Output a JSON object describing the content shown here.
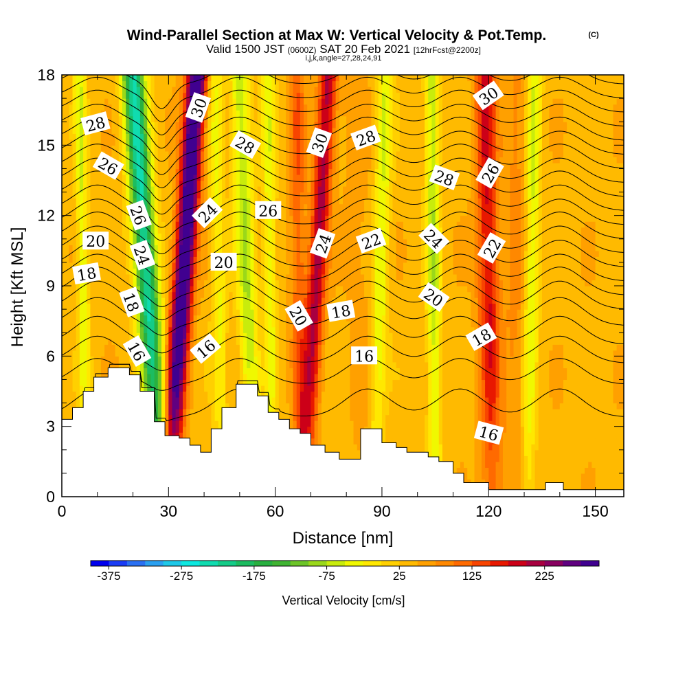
{
  "chart_data": {
    "type": "heatmap",
    "title": "Wind-Parallel Section at Max W: Vertical Velocity & Pot.Temp.",
    "title_mark": "(C)",
    "subtitle_parts": [
      "Valid 1500 JST",
      "(0600Z)",
      "SAT 20 Feb 2021",
      "[12hrFcst@2200z]"
    ],
    "subtitle2": "i,j,k,angle=27,28,24,91",
    "xlabel": "Distance [nm]",
    "ylabel": "Height [Kft MSL]",
    "xlim": [
      0,
      158
    ],
    "ylim": [
      0,
      18
    ],
    "xticks": [
      "0",
      "30",
      "60",
      "90",
      "120",
      "150"
    ],
    "xtick_values": [
      0,
      30,
      60,
      90,
      120,
      150
    ],
    "yticks": [
      "0",
      "3",
      "6",
      "9",
      "12",
      "15",
      "18"
    ],
    "ytick_values": [
      0,
      3,
      6,
      9,
      12,
      15,
      18
    ],
    "colorbar": {
      "title": "Vertical Velocity [cm/s]",
      "labels": [
        "-375",
        "-275",
        "-175",
        "-75",
        "25",
        "125",
        "225"
      ],
      "label_values": [
        -375,
        -275,
        -175,
        -75,
        25,
        125,
        225
      ],
      "min": -400,
      "max": 300,
      "step": 25,
      "colors": [
        "#0000ee",
        "#1a3cf5",
        "#2a70f2",
        "#2aa0f0",
        "#1ec8e8",
        "#0de8e0",
        "#10dcb0",
        "#14cc88",
        "#1cbc60",
        "#28b040",
        "#40b432",
        "#6cc428",
        "#9ad81a",
        "#c8ec0c",
        "#f0f800",
        "#ffe800",
        "#ffd000",
        "#ffba00",
        "#ffa000",
        "#ff8800",
        "#ff6a00",
        "#f84400",
        "#e81800",
        "#cc0018",
        "#a80040",
        "#880060",
        "#600080",
        "#400090"
      ]
    },
    "updrafts": [
      {
        "x_top": 38,
        "x_bottom": 30,
        "amp": 300,
        "width": 2.8
      },
      {
        "x_top": 75,
        "x_bottom": 68,
        "amp": 170,
        "width": 2.6
      },
      {
        "x_top": 119,
        "x_bottom": 121,
        "amp": 140,
        "width": 3.0
      },
      {
        "x_top": 66,
        "x_bottom": 67,
        "amp": 80,
        "width": 2.2
      },
      {
        "x_top": 128,
        "x_bottom": 127,
        "amp": 45,
        "width": 3.0
      },
      {
        "x_top": 82,
        "x_bottom": 85,
        "amp": 25,
        "width": 3.5
      }
    ],
    "downdrafts": [
      {
        "x_top": 20,
        "x_bottom": 28,
        "amp": -270,
        "width": 3.2
      },
      {
        "x_top": 50,
        "x_bottom": 54,
        "amp": -115,
        "width": 2.6
      },
      {
        "x_top": 91,
        "x_bottom": 88,
        "amp": -90,
        "width": 2.2
      },
      {
        "x_top": 104,
        "x_bottom": 105,
        "amp": -110,
        "width": 2.0
      },
      {
        "x_top": 133,
        "x_bottom": 131,
        "amp": -95,
        "width": 2.0
      },
      {
        "x_top": 5,
        "x_bottom": 7,
        "amp": -90,
        "width": 1.6
      },
      {
        "x_top": 43,
        "x_bottom": 45,
        "amp": -70,
        "width": 2.0
      },
      {
        "x_top": 58,
        "x_bottom": 59,
        "amp": -80,
        "width": 1.8
      }
    ],
    "terrain": [
      [
        0,
        3.3
      ],
      [
        3,
        3.3
      ],
      [
        3,
        3.8
      ],
      [
        6,
        3.8
      ],
      [
        6,
        4.5
      ],
      [
        9,
        4.5
      ],
      [
        9,
        5.1
      ],
      [
        13,
        5.1
      ],
      [
        13,
        5.5
      ],
      [
        19,
        5.5
      ],
      [
        19,
        5.2
      ],
      [
        22,
        5.2
      ],
      [
        22,
        4.5
      ],
      [
        26,
        4.5
      ],
      [
        26,
        3.2
      ],
      [
        29,
        3.2
      ],
      [
        29,
        2.6
      ],
      [
        33,
        2.6
      ],
      [
        33,
        2.5
      ],
      [
        36,
        2.5
      ],
      [
        36,
        2.2
      ],
      [
        39,
        2.2
      ],
      [
        39,
        1.9
      ],
      [
        42,
        1.9
      ],
      [
        42,
        2.9
      ],
      [
        45,
        2.9
      ],
      [
        45,
        3.8
      ],
      [
        49,
        3.8
      ],
      [
        49,
        4.8
      ],
      [
        55,
        4.8
      ],
      [
        55,
        4.3
      ],
      [
        58,
        4.3
      ],
      [
        58,
        3.6
      ],
      [
        61,
        3.6
      ],
      [
        61,
        3.3
      ],
      [
        64,
        3.3
      ],
      [
        64,
        2.9
      ],
      [
        67,
        2.9
      ],
      [
        67,
        2.7
      ],
      [
        70,
        2.7
      ],
      [
        70,
        2.2
      ],
      [
        74,
        2.2
      ],
      [
        74,
        1.9
      ],
      [
        78,
        1.9
      ],
      [
        78,
        1.6
      ],
      [
        80,
        1.6
      ],
      [
        80,
        1.6
      ],
      [
        84,
        1.6
      ],
      [
        84,
        2.9
      ],
      [
        90,
        2.9
      ],
      [
        90,
        2.3
      ],
      [
        94,
        2.3
      ],
      [
        94,
        2.1
      ],
      [
        97,
        2.1
      ],
      [
        97,
        1.9
      ],
      [
        103,
        1.9
      ],
      [
        103,
        1.7
      ],
      [
        106,
        1.7
      ],
      [
        106,
        1.5
      ],
      [
        110,
        1.5
      ],
      [
        110,
        1.0
      ],
      [
        113,
        1.0
      ],
      [
        113,
        0.6
      ],
      [
        120,
        0.6
      ],
      [
        120,
        0.3
      ],
      [
        136,
        0.3
      ],
      [
        136,
        0.6
      ],
      [
        141,
        0.6
      ],
      [
        141,
        0.3
      ],
      [
        158,
        0.3
      ]
    ],
    "isentropes": [
      {
        "base": 3.4,
        "A": 1.2
      },
      {
        "base": 4.8,
        "A": 1.1
      },
      {
        "base": 5.7,
        "A": 1.15
      },
      {
        "base": 6.5,
        "A": 1.2
      },
      {
        "base": 7.3,
        "A": 1.2
      },
      {
        "base": 8.0,
        "A": 1.2
      },
      {
        "base": 8.6,
        "A": 1.2
      },
      {
        "base": 9.2,
        "A": 1.15
      },
      {
        "base": 9.8,
        "A": 1.15
      },
      {
        "base": 10.4,
        "A": 1.15
      },
      {
        "base": 11.0,
        "A": 1.15
      },
      {
        "base": 11.6,
        "A": 1.1
      },
      {
        "base": 12.2,
        "A": 1.1
      },
      {
        "base": 12.8,
        "A": 1.1
      },
      {
        "base": 13.4,
        "A": 1.05
      },
      {
        "base": 14.0,
        "A": 1.05
      },
      {
        "base": 14.6,
        "A": 1.0
      },
      {
        "base": 15.2,
        "A": 1.0
      },
      {
        "base": 15.8,
        "A": 0.95
      },
      {
        "base": 16.4,
        "A": 0.95
      },
      {
        "base": 17.0,
        "A": 0.9
      },
      {
        "base": 17.6,
        "A": 0.9
      }
    ],
    "contour_labels": [
      {
        "text": "28",
        "x": 9.5,
        "y": 15.9,
        "angle": -15
      },
      {
        "text": "26",
        "x": 13,
        "y": 14.1,
        "angle": 30
      },
      {
        "text": "20",
        "x": 9.5,
        "y": 10.9,
        "angle": 0
      },
      {
        "text": "18",
        "x": 7,
        "y": 9.5,
        "angle": -10
      },
      {
        "text": "26",
        "x": 21.5,
        "y": 12.0,
        "angle": 70
      },
      {
        "text": "24",
        "x": 22.5,
        "y": 10.3,
        "angle": 70
      },
      {
        "text": "18",
        "x": 19.5,
        "y": 8.3,
        "angle": 70
      },
      {
        "text": "16",
        "x": 21,
        "y": 6.2,
        "angle": 60
      },
      {
        "text": "30",
        "x": 38.5,
        "y": 16.6,
        "angle": -70
      },
      {
        "text": "24",
        "x": 41,
        "y": 12.1,
        "angle": -45
      },
      {
        "text": "20",
        "x": 45.5,
        "y": 10.0,
        "angle": 0
      },
      {
        "text": "16",
        "x": 40.5,
        "y": 6.3,
        "angle": -40
      },
      {
        "text": "28",
        "x": 51.5,
        "y": 15.0,
        "angle": 30
      },
      {
        "text": "26",
        "x": 58,
        "y": 12.2,
        "angle": 0
      },
      {
        "text": "30",
        "x": 72.5,
        "y": 15.1,
        "angle": -70
      },
      {
        "text": "24",
        "x": 73.5,
        "y": 10.8,
        "angle": -70
      },
      {
        "text": "28",
        "x": 85.5,
        "y": 15.3,
        "angle": -20
      },
      {
        "text": "22",
        "x": 87,
        "y": 10.9,
        "angle": -20
      },
      {
        "text": "20",
        "x": 66.5,
        "y": 7.7,
        "angle": 60
      },
      {
        "text": "18",
        "x": 78.5,
        "y": 7.9,
        "angle": -10
      },
      {
        "text": "16",
        "x": 85,
        "y": 6.0,
        "angle": 0
      },
      {
        "text": "28",
        "x": 107.5,
        "y": 13.6,
        "angle": 20
      },
      {
        "text": "24",
        "x": 104.5,
        "y": 11.0,
        "angle": 45
      },
      {
        "text": "20",
        "x": 104.5,
        "y": 8.5,
        "angle": 35
      },
      {
        "text": "30",
        "x": 120,
        "y": 17.1,
        "angle": -35
      },
      {
        "text": "26",
        "x": 120.5,
        "y": 13.8,
        "angle": -60
      },
      {
        "text": "22",
        "x": 121,
        "y": 10.6,
        "angle": -60
      },
      {
        "text": "18",
        "x": 118,
        "y": 6.8,
        "angle": -30
      },
      {
        "text": "16",
        "x": 120,
        "y": 2.7,
        "angle": 15
      }
    ]
  }
}
